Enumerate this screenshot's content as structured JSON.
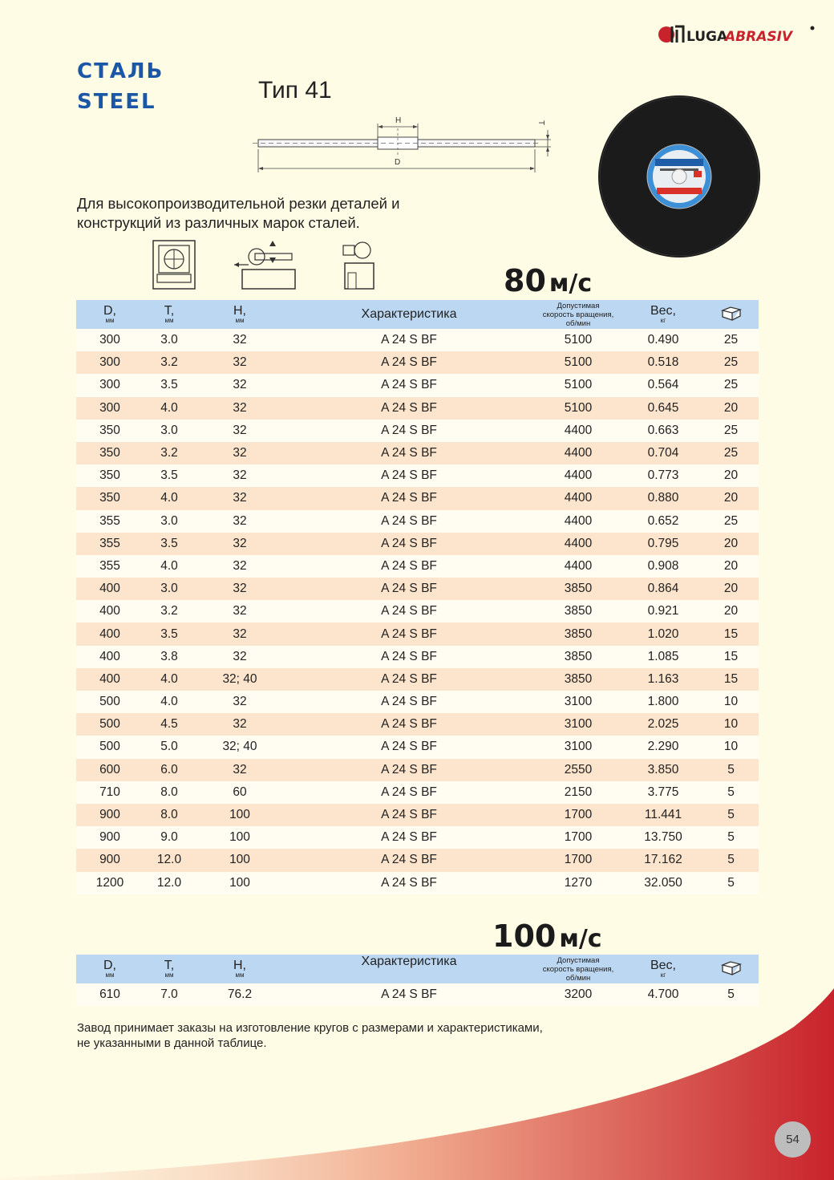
{
  "logo": {
    "text_left": "LUGA",
    "text_right": "ABRASIV"
  },
  "title_ru": "СТАЛЬ",
  "title_en": "STEEL",
  "type_label": "Тип 41",
  "drawing": {
    "label_h": "H",
    "label_d": "D",
    "label_t": "T"
  },
  "description": [
    "Для высокопроизводительной резки деталей и",
    "конструкций из различных марок сталей."
  ],
  "section1": {
    "speed_value": "80",
    "speed_unit": "м/с"
  },
  "section2": {
    "speed_value": "100",
    "speed_unit": "м/с"
  },
  "headers": {
    "d": "D,",
    "d_unit": "мм",
    "t": "T,",
    "t_unit": "мм",
    "h": "H,",
    "h_unit": "мм",
    "char": "Характеристика",
    "speed_1": "Допустимая",
    "speed_2": "скорость вращения,",
    "speed_3": "об/мин",
    "weight": "Вес,",
    "weight_unit": "кг"
  },
  "table1": [
    [
      "300",
      "3.0",
      "32",
      "A 24 S BF",
      "5100",
      "0.490",
      "25"
    ],
    [
      "300",
      "3.2",
      "32",
      "A 24 S BF",
      "5100",
      "0.518",
      "25"
    ],
    [
      "300",
      "3.5",
      "32",
      "A 24 S BF",
      "5100",
      "0.564",
      "25"
    ],
    [
      "300",
      "4.0",
      "32",
      "A 24 S BF",
      "5100",
      "0.645",
      "20"
    ],
    [
      "350",
      "3.0",
      "32",
      "A 24 S BF",
      "4400",
      "0.663",
      "25"
    ],
    [
      "350",
      "3.2",
      "32",
      "A 24 S BF",
      "4400",
      "0.704",
      "25"
    ],
    [
      "350",
      "3.5",
      "32",
      "A 24 S BF",
      "4400",
      "0.773",
      "20"
    ],
    [
      "350",
      "4.0",
      "32",
      "A 24 S BF",
      "4400",
      "0.880",
      "20"
    ],
    [
      "355",
      "3.0",
      "32",
      "A 24 S BF",
      "4400",
      "0.652",
      "25"
    ],
    [
      "355",
      "3.5",
      "32",
      "A 24 S BF",
      "4400",
      "0.795",
      "20"
    ],
    [
      "355",
      "4.0",
      "32",
      "A 24 S BF",
      "4400",
      "0.908",
      "20"
    ],
    [
      "400",
      "3.0",
      "32",
      "A 24 S BF",
      "3850",
      "0.864",
      "20"
    ],
    [
      "400",
      "3.2",
      "32",
      "A 24 S BF",
      "3850",
      "0.921",
      "20"
    ],
    [
      "400",
      "3.5",
      "32",
      "A 24 S BF",
      "3850",
      "1.020",
      "15"
    ],
    [
      "400",
      "3.8",
      "32",
      "A 24 S BF",
      "3850",
      "1.085",
      "15"
    ],
    [
      "400",
      "4.0",
      "32; 40",
      "A 24 S BF",
      "3850",
      "1.163",
      "15"
    ],
    [
      "500",
      "4.0",
      "32",
      "A 24 S BF",
      "3100",
      "1.800",
      "10"
    ],
    [
      "500",
      "4.5",
      "32",
      "A 24 S BF",
      "3100",
      "2.025",
      "10"
    ],
    [
      "500",
      "5.0",
      "32; 40",
      "A 24 S BF",
      "3100",
      "2.290",
      "10"
    ],
    [
      "600",
      "6.0",
      "32",
      "A 24 S BF",
      "2550",
      "3.850",
      "5"
    ],
    [
      "710",
      "8.0",
      "60",
      "A 24 S BF",
      "2150",
      "3.775",
      "5"
    ],
    [
      "900",
      "8.0",
      "100",
      "A 24 S BF",
      "1700",
      "11.441",
      "5"
    ],
    [
      "900",
      "9.0",
      "100",
      "A 24 S BF",
      "1700",
      "13.750",
      "5"
    ],
    [
      "900",
      "12.0",
      "100",
      "A 24 S BF",
      "1700",
      "17.162",
      "5"
    ],
    [
      "1200",
      "12.0",
      "100",
      "A 24 S BF",
      "1270",
      "32.050",
      "5"
    ]
  ],
  "table2": [
    [
      "610",
      "7.0",
      "76.2",
      "A 24 S BF",
      "3200",
      "4.700",
      "5"
    ]
  ],
  "footer": [
    "Завод принимает заказы на изготовление кругов с размерами и характеристиками,",
    "не указанными в данной таблице."
  ],
  "page_number": "54",
  "colors": {
    "title_blue": "#1a57a6",
    "header_bg": "#bcd7f1",
    "row_alt": "#fde5cd",
    "page_bg": "#fffce6",
    "accent_red": "#c8232c"
  }
}
